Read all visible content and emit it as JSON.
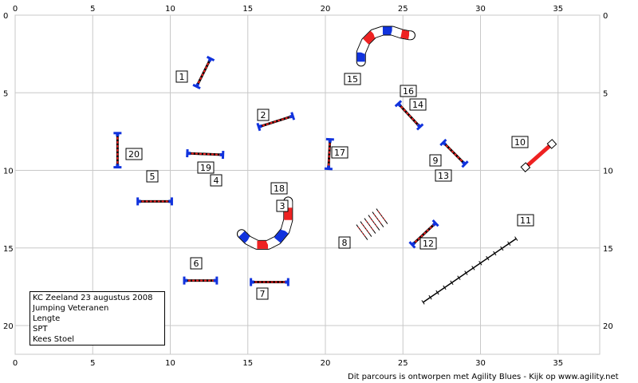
{
  "colors": {
    "red": "#ee2222",
    "blue": "#1133dd",
    "grid": "#c8c8c8"
  },
  "axes": {
    "x_ticks": [
      0,
      5,
      10,
      15,
      20,
      25,
      30,
      35
    ],
    "y_ticks": [
      0,
      5,
      10,
      15,
      20
    ]
  },
  "info": {
    "lines": [
      "KC Zeeland 23 augustus 2008",
      "Jumping Veteranen",
      "Lengte",
      "SPT",
      "Kees Stoel"
    ]
  },
  "footer": {
    "text": "Dit parcours is ontworpen met Agility Blues - Kijk op www.agility.net"
  },
  "chart_data": {
    "type": "scatter",
    "x_range": [
      0,
      38
    ],
    "y_range": [
      0,
      22
    ],
    "obstacles": [
      {
        "label": "1",
        "kind": "hurdle",
        "x1": 11.7,
        "y1": 4.6,
        "x2": 12.6,
        "y2": 2.8
      },
      {
        "label": "2",
        "kind": "hurdle",
        "x1": 15.7,
        "y1": 7.2,
        "x2": 17.9,
        "y2": 6.5
      },
      {
        "label": "3",
        "kind": "tunnel"
      },
      {
        "label": "4",
        "kind": "hurdle",
        "x1": 11.1,
        "y1": 8.9,
        "x2": 13.4,
        "y2": 9.0
      },
      {
        "label": "5",
        "kind": "hurdle",
        "x1": 7.9,
        "y1": 12.0,
        "x2": 10.1,
        "y2": 12.0
      },
      {
        "label": "6",
        "kind": "hurdle",
        "x1": 10.9,
        "y1": 17.1,
        "x2": 13.0,
        "y2": 17.1
      },
      {
        "label": "7",
        "kind": "hurdle",
        "x1": 15.2,
        "y1": 17.2,
        "x2": 17.6,
        "y2": 17.2
      },
      {
        "label": "8",
        "kind": "weaves"
      },
      {
        "label": "9",
        "kind": "hurdle",
        "x1": 27.6,
        "y1": 8.2,
        "x2": 29.0,
        "y2": 9.6
      },
      {
        "label": "10",
        "kind": "tire",
        "x1": 32.9,
        "y1": 9.8,
        "x2": 34.6,
        "y2": 8.3
      },
      {
        "label": "11",
        "kind": "walk",
        "x1": 26.3,
        "y1": 18.5,
        "x2": 32.3,
        "y2": 14.4
      },
      {
        "label": "12",
        "kind": "hurdle",
        "x1": 25.6,
        "y1": 14.8,
        "x2": 27.1,
        "y2": 13.4
      },
      {
        "label": "13",
        "kind": "hurdle",
        "x1": 27.6,
        "y1": 8.2,
        "x2": 29.0,
        "y2": 9.6
      },
      {
        "label": "14",
        "kind": "hurdle",
        "x1": 24.7,
        "y1": 5.7,
        "x2": 26.1,
        "y2": 7.2
      },
      {
        "label": "15",
        "kind": "tunnel"
      },
      {
        "label": "16",
        "kind": "hurdle",
        "x1": 24.7,
        "y1": 5.7,
        "x2": 26.1,
        "y2": 7.2
      },
      {
        "label": "17",
        "kind": "hurdle",
        "x1": 20.3,
        "y1": 8.0,
        "x2": 20.2,
        "y2": 9.9
      },
      {
        "label": "18",
        "kind": "tunnel"
      },
      {
        "label": "19",
        "kind": "hurdle",
        "x1": 11.1,
        "y1": 8.9,
        "x2": 13.4,
        "y2": 9.0
      },
      {
        "label": "20",
        "kind": "hurdle",
        "x1": 6.6,
        "y1": 7.6,
        "x2": 6.6,
        "y2": 9.8
      }
    ]
  }
}
